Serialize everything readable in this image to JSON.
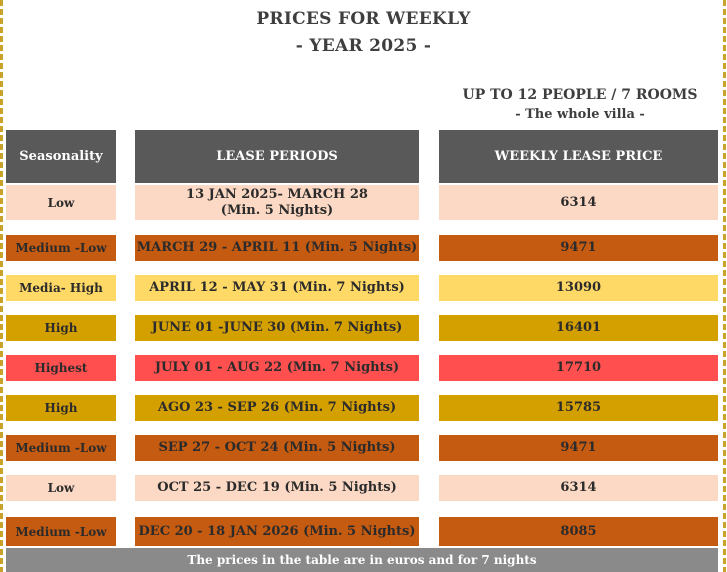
{
  "title": {
    "line1": "PRICES FOR WEEKLY",
    "line2": "- YEAR 2025 -"
  },
  "capacity": {
    "line1": "UP TO 12 PEOPLE / 7 ROOMS",
    "line2": "- The whole villa -"
  },
  "table": {
    "headers": [
      "Seasonality",
      "LEASE PERIODS",
      "WEEKLY LEASE PRICE"
    ],
    "rows": [
      {
        "season": "Low",
        "period": "13 JAN 2025- MARCH 28\n(Min. 5 Nights)",
        "price": "6314",
        "color": "#fcd9c4"
      },
      {
        "season": "Medium -Low",
        "period": "MARCH 29 - APRIL 11 (Min. 5 Nights)",
        "price": "9471",
        "color": "#c55a11"
      },
      {
        "season": "Media- High",
        "period": "APRIL 12 - MAY 31 (Min. 7 Nights)",
        "price": "13090",
        "color": "#ffd966"
      },
      {
        "season": "High",
        "period": "JUNE 01 -JUNE 30 (Min. 7 Nights)",
        "price": "16401",
        "color": "#d4a000"
      },
      {
        "season": "Highest",
        "period": "JULY 01 - AUG 22 (Min. 7 Nights)",
        "price": "17710",
        "color": "#ff4f4f"
      },
      {
        "season": "High",
        "period": "AGO 23 - SEP 26 (Min. 7 Nights)",
        "price": "15785",
        "color": "#d4a000"
      },
      {
        "season": "Medium -Low",
        "period": "SEP 27 - OCT 24 (Min. 5 Nights)",
        "price": "9471",
        "color": "#c55a11"
      },
      {
        "season": "Low",
        "period": "OCT 25 - DEC 19 (Min. 5 Nights)",
        "price": "6314",
        "color": "#fcd9c4"
      },
      {
        "season": "Medium -Low",
        "period": "DEC 20 - 18 JAN 2026 (Min. 5 Nights)",
        "price": "8085",
        "color": "#c55a11"
      }
    ]
  },
  "footer": "The prices in the table are in euros and for 7 nights"
}
